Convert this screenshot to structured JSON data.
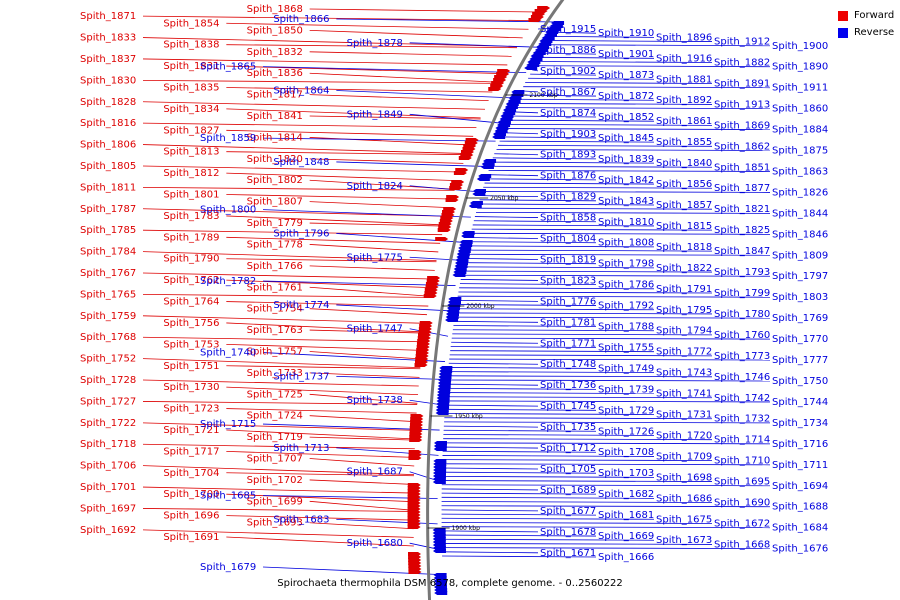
{
  "title": "Spirochaeta thermophila DSM 6578, complete genome. - 0..2560222",
  "legend": [
    {
      "label": "Forward",
      "color": "#ee0000"
    },
    {
      "label": "Reverse",
      "color": "#0000ee"
    }
  ],
  "colors": {
    "forward": "#dd0000",
    "reverse": "#0000dd",
    "backbone": "#777777"
  },
  "ticks": [
    "2100 kbp",
    "2050 kbp",
    "2000 kbp",
    "1950 kbp",
    "1900 kbp"
  ],
  "genes_left_forward": [
    "Spith_1868",
    "Spith_1871",
    "Spith_1854",
    "Spith_1850",
    "Spith_1833",
    "Spith_1838",
    "Spith_1832",
    "Spith_1837",
    "Spith_1831",
    "Spith_1836",
    "Spith_1830",
    "Spith_1835",
    "Spith_1817",
    "Spith_1828",
    "Spith_1834",
    "Spith_1841",
    "Spith_1816",
    "Spith_1827",
    "Spith_1814",
    "Spith_1806",
    "Spith_1813",
    "Spith_1820",
    "Spith_1805",
    "Spith_1812",
    "Spith_1802",
    "Spith_1811",
    "Spith_1801",
    "Spith_1807",
    "Spith_1787",
    "Spith_1783",
    "Spith_1779",
    "Spith_1785",
    "Spith_1789",
    "Spith_1778",
    "Spith_1784",
    "Spith_1790",
    "Spith_1766",
    "Spith_1767",
    "Spith_1762",
    "Spith_1761",
    "Spith_1765",
    "Spith_1764",
    "Spith_1754",
    "Spith_1759",
    "Spith_1756",
    "Spith_1763",
    "Spith_1768",
    "Spith_1753",
    "Spith_1757",
    "Spith_1752",
    "Spith_1751",
    "Spith_1733",
    "Spith_1728",
    "Spith_1730",
    "Spith_1725",
    "Spith_1727",
    "Spith_1723",
    "Spith_1724",
    "Spith_1722",
    "Spith_1721",
    "Spith_1719",
    "Spith_1718",
    "Spith_1717",
    "Spith_1707",
    "Spith_1706",
    "Spith_1704",
    "Spith_1702",
    "Spith_1701",
    "Spith_1700",
    "Spith_1699",
    "Spith_1697",
    "Spith_1696",
    "Spith_1693",
    "Spith_1692",
    "Spith_1691"
  ],
  "genes_left_reverse": [
    "Spith_1866",
    "Spith_1878",
    "Spith_1865",
    "Spith_1864",
    "Spith_1849",
    "Spith_1859",
    "Spith_1848",
    "Spith_1824",
    "Spith_1800",
    "Spith_1796",
    "Spith_1775",
    "Spith_1782",
    "Spith_1774",
    "Spith_1747",
    "Spith_1740",
    "Spith_1737",
    "Spith_1738",
    "Spith_1715",
    "Spith_1713",
    "Spith_1687",
    "Spith_1685",
    "Spith_1683",
    "Spith_1680",
    "Spith_1679"
  ],
  "genes_right_reverse": [
    "Spith_1915",
    "Spith_1910",
    "Spith_1896",
    "Spith_1912",
    "Spith_1900",
    "Spith_1886",
    "Spith_1901",
    "Spith_1916",
    "Spith_1882",
    "Spith_1890",
    "Spith_1902",
    "Spith_1873",
    "Spith_1881",
    "Spith_1891",
    "Spith_1911",
    "Spith_1867",
    "Spith_1872",
    "Spith_1892",
    "Spith_1913",
    "Spith_1860",
    "Spith_1874",
    "Spith_1852",
    "Spith_1861",
    "Spith_1869",
    "Spith_1884",
    "Spith_1903",
    "Spith_1845",
    "Spith_1855",
    "Spith_1862",
    "Spith_1875",
    "Spith_1893",
    "Spith_1839",
    "Spith_1840",
    "Spith_1851",
    "Spith_1863",
    "Spith_1876",
    "Spith_1842",
    "Spith_1856",
    "Spith_1877",
    "Spith_1826",
    "Spith_1829",
    "Spith_1843",
    "Spith_1857",
    "Spith_1821",
    "Spith_1844",
    "Spith_1858",
    "Spith_1810",
    "Spith_1815",
    "Spith_1825",
    "Spith_1846",
    "Spith_1804",
    "Spith_1808",
    "Spith_1818",
    "Spith_1847",
    "Spith_1809",
    "Spith_1819",
    "Spith_1798",
    "Spith_1822",
    "Spith_1793",
    "Spith_1797",
    "Spith_1823",
    "Spith_1786",
    "Spith_1791",
    "Spith_1799",
    "Spith_1803",
    "Spith_1776",
    "Spith_1792",
    "Spith_1795",
    "Spith_1780",
    "Spith_1769",
    "Spith_1781",
    "Spith_1788",
    "Spith_1794",
    "Spith_1760",
    "Spith_1770",
    "Spith_1771",
    "Spith_1755",
    "Spith_1772",
    "Spith_1773",
    "Spith_1777",
    "Spith_1748",
    "Spith_1749",
    "Spith_1743",
    "Spith_1746",
    "Spith_1750",
    "Spith_1736",
    "Spith_1739",
    "Spith_1741",
    "Spith_1742",
    "Spith_1744",
    "Spith_1745",
    "Spith_1729",
    "Spith_1731",
    "Spith_1732",
    "Spith_1734",
    "Spith_1735",
    "Spith_1726",
    "Spith_1720",
    "Spith_1714",
    "Spith_1716",
    "Spith_1712",
    "Spith_1708",
    "Spith_1709",
    "Spith_1710",
    "Spith_1711",
    "Spith_1705",
    "Spith_1703",
    "Spith_1698",
    "Spith_1695",
    "Spith_1694",
    "Spith_1689",
    "Spith_1682",
    "Spith_1686",
    "Spith_1690",
    "Spith_1688",
    "Spith_1677",
    "Spith_1681",
    "Spith_1675",
    "Spith_1672",
    "Spith_1684",
    "Spith_1678",
    "Spith_1669",
    "Spith_1673",
    "Spith_1668",
    "Spith_1676",
    "Spith_1671",
    "Spith_1666"
  ]
}
